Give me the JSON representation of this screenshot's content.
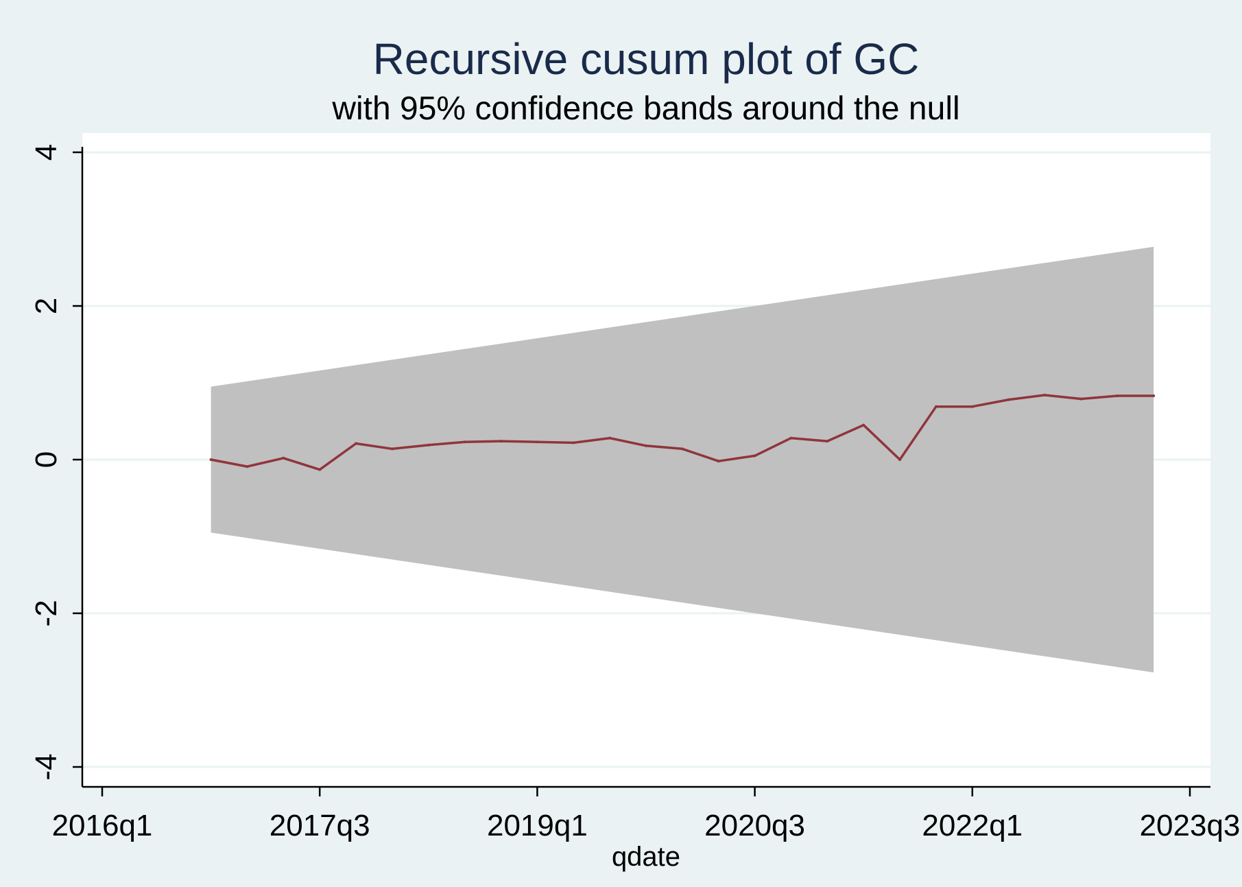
{
  "chart_data": {
    "type": "line",
    "title": "Recursive cusum plot of GC",
    "subtitle": "with 95% confidence bands around the null",
    "xlabel": "qdate",
    "ylabel": "",
    "xlim": [
      "2016q1",
      "2023q3"
    ],
    "ylim": [
      -4,
      4
    ],
    "x_ticks": [
      "2016q1",
      "2017q3",
      "2019q1",
      "2020q3",
      "2022q1",
      "2023q3"
    ],
    "y_ticks": [
      4,
      2,
      0,
      -2,
      -4
    ],
    "grid": true,
    "legend": "none",
    "x": [
      "2016q4",
      "2017q1",
      "2017q2",
      "2017q3",
      "2017q4",
      "2018q1",
      "2018q2",
      "2018q3",
      "2018q4",
      "2019q1",
      "2019q2",
      "2019q3",
      "2019q4",
      "2020q1",
      "2020q2",
      "2020q3",
      "2020q4",
      "2021q1",
      "2021q2",
      "2021q3",
      "2021q4",
      "2022q1",
      "2022q2",
      "2022q3",
      "2022q4",
      "2023q1",
      "2023q2"
    ],
    "series": [
      {
        "values": [
          0.0,
          -0.09,
          0.02,
          -0.13,
          0.21,
          0.14,
          0.19,
          0.23,
          0.24,
          0.23,
          0.22,
          0.28,
          0.18,
          0.14,
          -0.02,
          0.05,
          0.28,
          0.24,
          0.45,
          0.0,
          0.69,
          0.69,
          0.78,
          0.84,
          0.79,
          0.83,
          0.83
        ]
      }
    ],
    "band": {
      "x": [
        "2016q4",
        "2023q2"
      ],
      "upper": [
        0.95,
        2.77
      ],
      "lower": [
        -0.95,
        -2.77
      ]
    },
    "colors": {
      "background": "#eaf2f3",
      "plot_area": "#ffffff",
      "grid": "#eaf2f3",
      "band": "#c0c0c0",
      "line": "#90353b",
      "title": "#1a2a4a",
      "text": "#000000"
    }
  }
}
